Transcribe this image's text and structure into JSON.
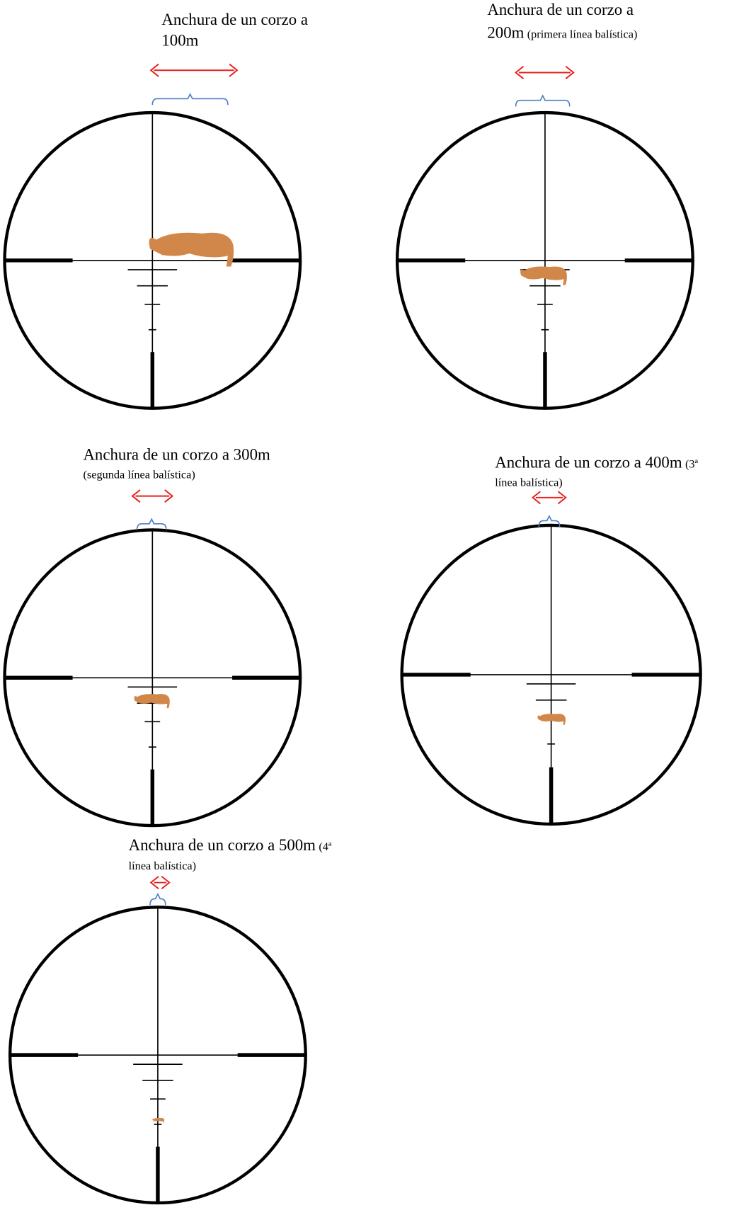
{
  "scopes": [
    {
      "title": [
        "Anchura de un corzo a",
        "100m"
      ]
    },
    {
      "title": [
        "Anchura de un corzo a",
        "200m"
      ],
      "note": "(primera línea balística)"
    },
    {
      "title": "Anchura de un corzo a 300m",
      "note": "(segunda línea balística)"
    },
    {
      "title": "Anchura de un corzo a 400m",
      "note": [
        "(3ª",
        "línea balística)"
      ]
    },
    {
      "title": "Anchura de un corzo a 500m",
      "note": [
        "(4ª",
        "línea balística)"
      ]
    }
  ]
}
